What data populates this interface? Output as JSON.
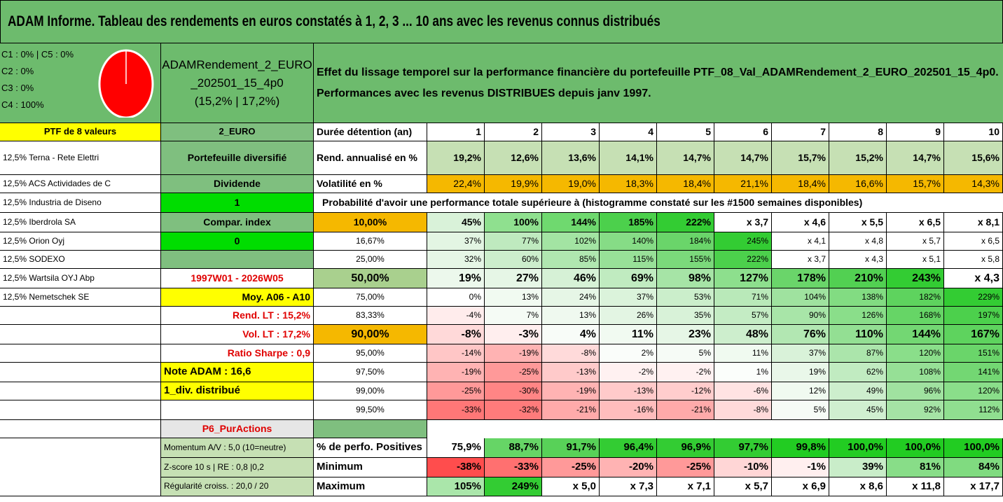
{
  "title": "ADAM Informe. Tableau des rendements en euros constatés à 1, 2, 3 ... 10 ans avec les revenus connus distribués",
  "allocation": [
    "C1 : 0% | C5 : 0%",
    "C2 : 0%",
    "C3 : 0%",
    "C4 : 100%"
  ],
  "fund": {
    "line1": "ADAMRendement_2_EURO",
    "line2": "_202501_15_4p0",
    "line3": "(15,2% | 17,2%)"
  },
  "description": {
    "line1": "Effet du lissage temporel sur la performance financière du portefeuille PTF_08_Val_ADAMRendement_2_EURO_202501_15_4p0.",
    "line2": "Performances avec les revenus DISTRIBUES depuis janv 1997."
  },
  "portfolio_header": "PTF de 8 valeurs",
  "currency": "2_EURO",
  "holdings": [
    "12,5% Terna - Rete Elettri",
    "12,5% ACS Actividades de C",
    "12,5% Industria de Diseno",
    "12,5% Iberdrola SA",
    "12,5% Orion Oyj",
    "12,5% SODEXO",
    "12,5% Wartsila OYJ Abp",
    "12,5% Nemetschek SE"
  ],
  "side": {
    "diversification": "Portefeuille diversifié",
    "dividend_label": "Dividende",
    "dividend_value": "1",
    "compar_label": "Compar. index",
    "compar_value": "0",
    "period": "1997W01 - 2026W05",
    "moy": "Moy. A06 - A10",
    "rend_lt": "Rend. LT : 15,2%",
    "vol_lt": "Vol. LT : 17,2%",
    "sharpe": "Ratio Sharpe : 0,9",
    "note": "Note ADAM : 16,6",
    "div": "1_div. distribué",
    "p6": "P6_PurActions",
    "momentum": "Momentum A/V : 5,0 (10=neutre)",
    "zscore": "Z-score 10 s | RE : 0,8 |0,2",
    "regularite": "Régularité croiss. : 20,0 / 20"
  },
  "duration_label": "Durée détention (an)",
  "years": [
    "1",
    "2",
    "3",
    "4",
    "5",
    "6",
    "7",
    "8",
    "9",
    "10"
  ],
  "rend_label": "Rend. annualisé en %",
  "rend": [
    "19,2%",
    "12,6%",
    "13,6%",
    "14,1%",
    "14,7%",
    "14,7%",
    "15,7%",
    "15,2%",
    "14,7%",
    "15,6%"
  ],
  "vol_label": "Volatilité en %",
  "vol": [
    "22,4%",
    "19,9%",
    "19,0%",
    "18,3%",
    "18,4%",
    "21,1%",
    "18,4%",
    "16,6%",
    "15,7%",
    "14,3%"
  ],
  "proba_header": "Probabilité d'avoir une performance totale supérieure à (histogramme constaté sur les #1500 semaines disponibles)",
  "proba_rows": [
    {
      "p": "10,00%",
      "v": [
        "45%",
        "100%",
        "144%",
        "185%",
        "222%",
        "x 3,7",
        "x 4,6",
        "x 5,5",
        "x 6,5",
        "x 8,1"
      ],
      "bold": true,
      "c": [
        "#d9f2d9",
        "#8fe08f",
        "#6fd96f",
        "#4cd04c",
        "#33cc33",
        "#ffffff",
        "#ffffff",
        "#ffffff",
        "#ffffff",
        "#ffffff"
      ],
      "pc": "#f5b800"
    },
    {
      "p": "16,67%",
      "v": [
        "37%",
        "77%",
        "102%",
        "140%",
        "184%",
        "245%",
        "x 4,1",
        "x 4,8",
        "x 5,7",
        "x 6,5"
      ],
      "bold": false,
      "c": [
        "#e3f5e3",
        "#bfeabf",
        "#a3e4a3",
        "#86dc86",
        "#6ad56a",
        "#33cc33",
        "#ffffff",
        "#ffffff",
        "#ffffff",
        "#ffffff"
      ],
      "pc": "#ffffff"
    },
    {
      "p": "25,00%",
      "v": [
        "32%",
        "60%",
        "85%",
        "115%",
        "155%",
        "222%",
        "x 3,7",
        "x 4,3",
        "x 5,1",
        "x 5,8"
      ],
      "bold": false,
      "c": [
        "#e6f6e6",
        "#cceecc",
        "#b0e7b0",
        "#98e098",
        "#7bd97b",
        "#4cd04c",
        "#ffffff",
        "#ffffff",
        "#ffffff",
        "#ffffff"
      ],
      "pc": "#ffffff"
    },
    {
      "p": "50,00%",
      "v": [
        "19%",
        "27%",
        "46%",
        "69%",
        "98%",
        "127%",
        "178%",
        "210%",
        "243%",
        "x 4,3"
      ],
      "bold": true,
      "big": true,
      "c": [
        "#ecf8ec",
        "#e6f6e6",
        "#d6f1d6",
        "#c0ebc0",
        "#a6e4a6",
        "#8ddf8d",
        "#6ad56a",
        "#52d052",
        "#33cc33",
        "#ffffff"
      ],
      "pc": "#a9d08e"
    },
    {
      "p": "75,00%",
      "v": [
        "0%",
        "13%",
        "24%",
        "37%",
        "53%",
        "71%",
        "104%",
        "138%",
        "182%",
        "229%"
      ],
      "bold": false,
      "c": [
        "#ffffff",
        "#f1faf1",
        "#e6f6e6",
        "#dbf3db",
        "#cbeecb",
        "#b9e9b9",
        "#9fe29f",
        "#82dc82",
        "#5ed35e",
        "#33cc33"
      ],
      "pc": "#ffffff"
    },
    {
      "p": "83,33%",
      "v": [
        "-4%",
        "7%",
        "13%",
        "26%",
        "35%",
        "57%",
        "90%",
        "126%",
        "168%",
        "197%"
      ],
      "bold": false,
      "c": [
        "#ffecec",
        "#f5fbf5",
        "#eff9ef",
        "#e3f5e3",
        "#d8f2d8",
        "#c4ecc4",
        "#a8e5a8",
        "#8ade8a",
        "#66d566",
        "#4cd04c"
      ],
      "pc": "#ffffff"
    },
    {
      "p": "90,00%",
      "v": [
        "-8%",
        "-3%",
        "4%",
        "11%",
        "23%",
        "48%",
        "76%",
        "110%",
        "144%",
        "167%"
      ],
      "bold": true,
      "big": true,
      "c": [
        "#ffd9d9",
        "#ffeeee",
        "#f8fcf8",
        "#f1faf1",
        "#e6f6e6",
        "#cdeecd",
        "#b2e7b2",
        "#93df93",
        "#73d773",
        "#5ed35e"
      ],
      "pc": "#f5b800"
    },
    {
      "p": "95,00%",
      "v": [
        "-14%",
        "-19%",
        "-8%",
        "2%",
        "5%",
        "11%",
        "37%",
        "87%",
        "120%",
        "151%"
      ],
      "bold": false,
      "c": [
        "#ffc6c6",
        "#ffb3b3",
        "#ffdada",
        "#fafdfa",
        "#f6fbf6",
        "#f0faf0",
        "#d9f2d9",
        "#abe5ab",
        "#8ade8a",
        "#6ad56a"
      ],
      "pc": "#ffffff"
    },
    {
      "p": "97,50%",
      "v": [
        "-19%",
        "-25%",
        "-13%",
        "-2%",
        "-2%",
        "1%",
        "19%",
        "62%",
        "108%",
        "141%"
      ],
      "bold": false,
      "c": [
        "#ffb3b3",
        "#ff9999",
        "#ffcaca",
        "#fff1f1",
        "#fff1f1",
        "#fbfefb",
        "#e9f7e9",
        "#c1ebc1",
        "#96e096",
        "#73d773"
      ],
      "pc": "#ffffff"
    },
    {
      "p": "99,00%",
      "v": [
        "-25%",
        "-30%",
        "-19%",
        "-13%",
        "-12%",
        "-6%",
        "12%",
        "49%",
        "96%",
        "120%"
      ],
      "bold": false,
      "c": [
        "#ff9999",
        "#ff8585",
        "#ffb3b3",
        "#ffcaca",
        "#ffcdcd",
        "#ffe3e3",
        "#f0faf0",
        "#cdeecd",
        "#a0e2a0",
        "#8ade8a"
      ],
      "pc": "#ffffff"
    },
    {
      "p": "99,50%",
      "v": [
        "-33%",
        "-32%",
        "-21%",
        "-16%",
        "-21%",
        "-8%",
        "5%",
        "45%",
        "92%",
        "112%"
      ],
      "bold": false,
      "c": [
        "#ff7777",
        "#ff7b7b",
        "#ffaaaa",
        "#ffbdbd",
        "#ffaaaa",
        "#ffdada",
        "#f6fbf6",
        "#d0efd0",
        "#a5e3a5",
        "#90df90"
      ],
      "pc": "#ffffff"
    }
  ],
  "perf_label": "% de perfo. Positives",
  "perf": [
    "75,9%",
    "88,7%",
    "91,7%",
    "96,4%",
    "96,9%",
    "97,7%",
    "99,8%",
    "100,0%",
    "100,0%",
    "100,0%"
  ],
  "min_label": "Minimum",
  "min": [
    "-38%",
    "-33%",
    "-25%",
    "-20%",
    "-25%",
    "-10%",
    "-1%",
    "39%",
    "81%",
    "84%"
  ],
  "max_label": "Maximum",
  "max": [
    "105%",
    "249%",
    "x 5,0",
    "x 7,3",
    "x 7,1",
    "x 5,7",
    "x 6,9",
    "x 8,6",
    "x 11,8",
    "x 17,7"
  ],
  "colors": {
    "green_header": "#6dbb6d",
    "mid_green": "#7fbf7f",
    "light_green": "#c6e0b4",
    "orange": "#f5b800",
    "yellow": "#ffff00",
    "bright_green": "#00dd00",
    "red_text": "#e00000",
    "pie_red": "#ff0000"
  }
}
